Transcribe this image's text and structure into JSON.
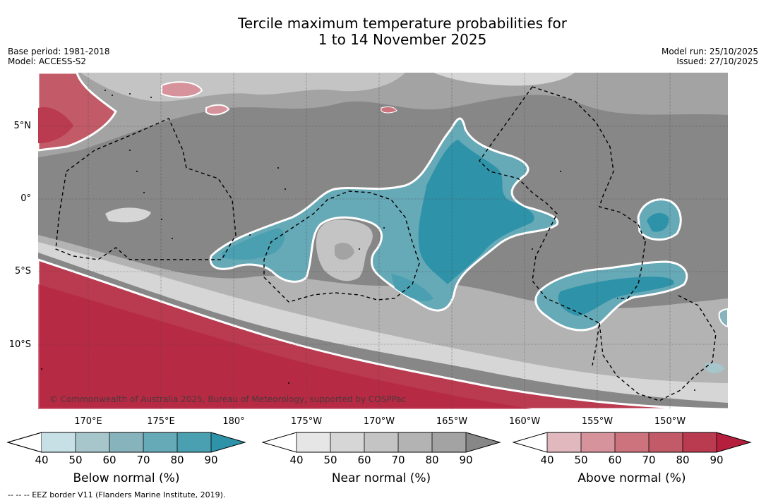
{
  "title_line1": "Tercile maximum temperature probabilities for",
  "title_line2": "1 to 14 November 2025",
  "base_period": "Base period: 1981-2018",
  "model": "Model: ACCESS-S2",
  "model_run": "Model run: 25/10/2025",
  "issued": "Issued: 27/10/2025",
  "copyright": "© Commonwealth of Australia 2025, Bureau of Meteorology, supported by COSPPac",
  "lat_labels": [
    "5°N",
    "0°",
    "5°S",
    "10°S"
  ],
  "lon_labels": [
    "170°E",
    "175°E",
    "180°",
    "175°W",
    "170°W",
    "165°W",
    "160°W",
    "155°W",
    "150°W"
  ],
  "colorbars": [
    {
      "title": "Below normal (%)",
      "ticks": [
        "40",
        "50",
        "60",
        "70",
        "80",
        "90"
      ],
      "colors": [
        "#c7e0e6",
        "#a6c6cc",
        "#87b3bd",
        "#66a9b7",
        "#4a9fb0",
        "#2e92a8"
      ]
    },
    {
      "title": "Near normal (%)",
      "ticks": [
        "40",
        "50",
        "60",
        "70",
        "80",
        "90"
      ],
      "colors": [
        "#e6e6e6",
        "#d6d6d6",
        "#c4c4c4",
        "#b3b3b3",
        "#a3a3a3",
        "#878787"
      ]
    },
    {
      "title": "Above normal (%)",
      "ticks": [
        "40",
        "50",
        "60",
        "70",
        "80",
        "90"
      ],
      "colors": [
        "#e0b8be",
        "#d6939b",
        "#cc737e",
        "#c25a67",
        "#ba3a4f",
        "#b51f3d"
      ]
    }
  ],
  "footnote": "-- -- -- EEZ border V11 (Flanders Marine Institute, 2019)."
}
